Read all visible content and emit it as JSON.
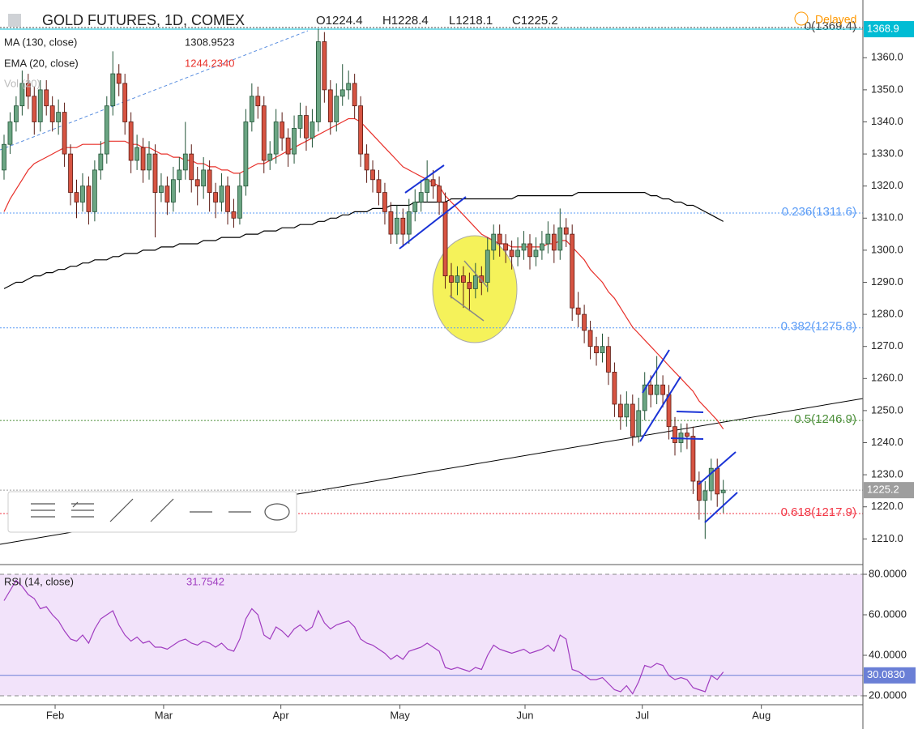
{
  "header": {
    "title": "GOLD FUTURES, 1D, COMEX",
    "ohlc": [
      "O1224.4",
      "H1228.4",
      "L1218.1",
      "C1225.2"
    ],
    "status": "Delayed"
  },
  "chart_data": [
    {
      "type": "candlestick",
      "up_color": "#6ba583",
      "down_color": "#d75442",
      "candles": [
        [
          1325,
          1336,
          1322,
          1333
        ],
        [
          1333,
          1343,
          1330,
          1340
        ],
        [
          1340,
          1348,
          1337,
          1345
        ],
        [
          1345,
          1356,
          1342,
          1352
        ],
        [
          1352,
          1355,
          1344,
          1348
        ],
        [
          1348,
          1351,
          1336,
          1340
        ],
        [
          1340,
          1353,
          1337,
          1350
        ],
        [
          1350,
          1353,
          1342,
          1345
        ],
        [
          1345,
          1348,
          1337,
          1340
        ],
        [
          1340,
          1347,
          1336,
          1343
        ],
        [
          1343,
          1346,
          1326,
          1330
        ],
        [
          1330,
          1333,
          1314,
          1318
        ],
        [
          1318,
          1322,
          1310,
          1315
        ],
        [
          1315,
          1324,
          1312,
          1320
        ],
        [
          1320,
          1323,
          1308,
          1312
        ],
        [
          1312,
          1328,
          1309,
          1325
        ],
        [
          1325,
          1334,
          1322,
          1330
        ],
        [
          1330,
          1348,
          1327,
          1345
        ],
        [
          1345,
          1362,
          1342,
          1355
        ],
        [
          1355,
          1358,
          1348,
          1352
        ],
        [
          1352,
          1355,
          1336,
          1340
        ],
        [
          1340,
          1343,
          1324,
          1328
        ],
        [
          1328,
          1336,
          1325,
          1332
        ],
        [
          1332,
          1335,
          1321,
          1325
        ],
        [
          1325,
          1334,
          1322,
          1330
        ],
        [
          1330,
          1333,
          1304,
          1318
        ],
        [
          1318,
          1324,
          1315,
          1320
        ],
        [
          1320,
          1323,
          1311,
          1315
        ],
        [
          1315,
          1326,
          1312,
          1322
        ],
        [
          1322,
          1329,
          1318,
          1325
        ],
        [
          1325,
          1340,
          1322,
          1330
        ],
        [
          1330,
          1333,
          1318,
          1322
        ],
        [
          1322,
          1326,
          1314,
          1320
        ],
        [
          1320,
          1329,
          1316,
          1325
        ],
        [
          1325,
          1328,
          1312,
          1318
        ],
        [
          1318,
          1321,
          1310,
          1315
        ],
        [
          1315,
          1324,
          1312,
          1320
        ],
        [
          1320,
          1323,
          1308,
          1312
        ],
        [
          1312,
          1316,
          1307,
          1310
        ],
        [
          1310,
          1324,
          1308,
          1320
        ],
        [
          1320,
          1344,
          1317,
          1340
        ],
        [
          1340,
          1352,
          1337,
          1348
        ],
        [
          1348,
          1351,
          1341,
          1345
        ],
        [
          1345,
          1348,
          1324,
          1328
        ],
        [
          1328,
          1334,
          1325,
          1330
        ],
        [
          1330,
          1344,
          1327,
          1340
        ],
        [
          1340,
          1343,
          1331,
          1335
        ],
        [
          1335,
          1338,
          1326,
          1330
        ],
        [
          1330,
          1342,
          1327,
          1338
        ],
        [
          1338,
          1346,
          1335,
          1342
        ],
        [
          1342,
          1345,
          1331,
          1335
        ],
        [
          1335,
          1344,
          1332,
          1340
        ],
        [
          1340,
          1369,
          1337,
          1365
        ],
        [
          1365,
          1368,
          1346,
          1350
        ],
        [
          1350,
          1353,
          1336,
          1340
        ],
        [
          1340,
          1352,
          1337,
          1348
        ],
        [
          1348,
          1358,
          1345,
          1350
        ],
        [
          1350,
          1356,
          1347,
          1352
        ],
        [
          1352,
          1355,
          1341,
          1345
        ],
        [
          1345,
          1348,
          1326,
          1330
        ],
        [
          1330,
          1333,
          1321,
          1325
        ],
        [
          1325,
          1328,
          1318,
          1322
        ],
        [
          1322,
          1325,
          1314,
          1318
        ],
        [
          1318,
          1321,
          1308,
          1312
        ],
        [
          1312,
          1315,
          1302,
          1305
        ],
        [
          1305,
          1314,
          1302,
          1310
        ],
        [
          1310,
          1313,
          1301,
          1305
        ],
        [
          1305,
          1316,
          1302,
          1312
        ],
        [
          1312,
          1319,
          1309,
          1315
        ],
        [
          1315,
          1322,
          1312,
          1318
        ],
        [
          1318,
          1328,
          1315,
          1322
        ],
        [
          1322,
          1325,
          1316,
          1320
        ],
        [
          1320,
          1323,
          1311,
          1315
        ],
        [
          1315,
          1318,
          1288,
          1292
        ],
        [
          1292,
          1296,
          1285,
          1290
        ],
        [
          1290,
          1295,
          1286,
          1292
        ],
        [
          1292,
          1295,
          1282,
          1290
        ],
        [
          1290,
          1293,
          1281,
          1288
        ],
        [
          1288,
          1296,
          1285,
          1292
        ],
        [
          1292,
          1295,
          1286,
          1290
        ],
        [
          1290,
          1304,
          1287,
          1300
        ],
        [
          1300,
          1308,
          1297,
          1305
        ],
        [
          1305,
          1308,
          1298,
          1302
        ],
        [
          1302,
          1305,
          1296,
          1300
        ],
        [
          1300,
          1303,
          1294,
          1298
        ],
        [
          1298,
          1304,
          1295,
          1300
        ],
        [
          1300,
          1306,
          1297,
          1302
        ],
        [
          1302,
          1305,
          1294,
          1298
        ],
        [
          1298,
          1304,
          1295,
          1300
        ],
        [
          1300,
          1306,
          1297,
          1302
        ],
        [
          1302,
          1309,
          1299,
          1305
        ],
        [
          1305,
          1308,
          1296,
          1300
        ],
        [
          1300,
          1313,
          1297,
          1307
        ],
        [
          1307,
          1310,
          1301,
          1305
        ],
        [
          1305,
          1308,
          1278,
          1282
        ],
        [
          1282,
          1287,
          1276,
          1280
        ],
        [
          1280,
          1283,
          1271,
          1275
        ],
        [
          1275,
          1278,
          1266,
          1270
        ],
        [
          1270,
          1273,
          1264,
          1268
        ],
        [
          1268,
          1274,
          1265,
          1270
        ],
        [
          1270,
          1273,
          1258,
          1262
        ],
        [
          1262,
          1265,
          1248,
          1252
        ],
        [
          1252,
          1255,
          1244,
          1248
        ],
        [
          1248,
          1256,
          1245,
          1252
        ],
        [
          1252,
          1255,
          1239,
          1242
        ],
        [
          1242,
          1254,
          1240,
          1250
        ],
        [
          1250,
          1262,
          1247,
          1258
        ],
        [
          1258,
          1261,
          1251,
          1255
        ],
        [
          1255,
          1267,
          1252,
          1258
        ],
        [
          1258,
          1261,
          1251,
          1255
        ],
        [
          1255,
          1258,
          1241,
          1245
        ],
        [
          1245,
          1248,
          1236,
          1240
        ],
        [
          1240,
          1246,
          1237,
          1243
        ],
        [
          1243,
          1246,
          1238,
          1242
        ],
        [
          1242,
          1245,
          1224,
          1228
        ],
        [
          1228,
          1231,
          1216,
          1222
        ],
        [
          1222,
          1228,
          1210,
          1225
        ],
        [
          1225,
          1235,
          1222,
          1232
        ],
        [
          1232,
          1235,
          1220,
          1224
        ],
        [
          1224.4,
          1228.4,
          1218.1,
          1225.2
        ]
      ],
      "series": [
        {
          "name": "MA (130, close)",
          "color": "#000000",
          "values": [
            1288,
            1289,
            1290,
            1290,
            1291,
            1292,
            1292,
            1293,
            1293,
            1294,
            1294,
            1295,
            1295,
            1296,
            1296,
            1297,
            1297,
            1297,
            1298,
            1298,
            1299,
            1299,
            1299,
            1300,
            1300,
            1300,
            1301,
            1301,
            1301,
            1302,
            1302,
            1302,
            1302,
            1303,
            1303,
            1303,
            1304,
            1304,
            1304,
            1304,
            1305,
            1305,
            1305,
            1306,
            1306,
            1306,
            1307,
            1307,
            1307,
            1308,
            1308,
            1308,
            1309,
            1309,
            1310,
            1310,
            1311,
            1311,
            1312,
            1312,
            1312,
            1313,
            1313,
            1313,
            1314,
            1314,
            1314,
            1314,
            1315,
            1315,
            1315,
            1315,
            1315,
            1315,
            1316,
            1316,
            1316,
            1316,
            1316,
            1316,
            1316,
            1316,
            1316,
            1316,
            1316,
            1317,
            1317,
            1317,
            1317,
            1317,
            1317,
            1317,
            1317,
            1317,
            1317,
            1318,
            1318,
            1318,
            1318,
            1318,
            1318,
            1318,
            1318,
            1318,
            1318,
            1318,
            1318,
            1317,
            1317,
            1316,
            1316,
            1315,
            1315,
            1314,
            1314,
            1313,
            1312,
            1311,
            1310,
            1308.9523
          ]
        },
        {
          "name": "EMA (20, close)",
          "color": "#e8302a",
          "last_label": "1244.2340",
          "values": [
            1312,
            1316,
            1319,
            1322,
            1325,
            1327,
            1328,
            1329,
            1330,
            1331,
            1332,
            1332,
            1332,
            1333,
            1333,
            1333,
            1333,
            1334,
            1334,
            1334,
            1334,
            1333,
            1333,
            1332,
            1332,
            1331,
            1330,
            1330,
            1329,
            1329,
            1328,
            1328,
            1327,
            1327,
            1326,
            1326,
            1325,
            1325,
            1324,
            1324,
            1325,
            1326,
            1327,
            1327,
            1328,
            1329,
            1330,
            1331,
            1332,
            1333,
            1334,
            1335,
            1336,
            1337,
            1338,
            1339,
            1340,
            1341,
            1341,
            1340,
            1338,
            1336,
            1334,
            1332,
            1330,
            1328,
            1326,
            1325,
            1324,
            1323,
            1322,
            1321,
            1320,
            1317,
            1315,
            1313,
            1311,
            1309,
            1307,
            1305,
            1304,
            1303,
            1302,
            1302,
            1301,
            1301,
            1301,
            1301,
            1301,
            1301,
            1302,
            1302,
            1303,
            1303,
            1301,
            1299,
            1297,
            1294,
            1292,
            1290,
            1287,
            1285,
            1282,
            1279,
            1276,
            1274,
            1272,
            1270,
            1268,
            1266,
            1264,
            1262,
            1260,
            1258,
            1256,
            1253,
            1251,
            1249,
            1247,
            1244.234
          ]
        }
      ],
      "volume_label": "Vol (20)",
      "ylim": [
        1202,
        1378
      ],
      "yticks": [
        {
          "value": 1210,
          "label": "1210.0"
        },
        {
          "value": 1220,
          "label": "1220.0"
        },
        {
          "value": 1230,
          "label": "1230.0"
        },
        {
          "value": 1240,
          "label": "1240.0"
        },
        {
          "value": 1250,
          "label": "1250.0"
        },
        {
          "value": 1260,
          "label": "1260.0"
        },
        {
          "value": 1270,
          "label": "1270.0"
        },
        {
          "value": 1280,
          "label": "1280.0"
        },
        {
          "value": 1290,
          "label": "1290.0"
        },
        {
          "value": 1300,
          "label": "1300.0"
        },
        {
          "value": 1310,
          "label": "1310.0"
        },
        {
          "value": 1320,
          "label": "1320.0"
        },
        {
          "value": 1330,
          "label": "1330.0"
        },
        {
          "value": 1340,
          "label": "1340.0"
        },
        {
          "value": 1350,
          "label": "1350.0"
        },
        {
          "value": 1360,
          "label": "1360.0"
        }
      ],
      "xlim": [
        -0.67,
        142.1
      ],
      "xticks": [
        {
          "value": 8.45,
          "label": "Feb"
        },
        {
          "value": 26.4,
          "label": "Mar"
        },
        {
          "value": 45.8,
          "label": "Apr"
        },
        {
          "value": 65.5,
          "label": "May"
        },
        {
          "value": 86.2,
          "label": "Jun"
        },
        {
          "value": 105.6,
          "label": "Jul"
        },
        {
          "value": 125.3,
          "label": "Aug"
        }
      ],
      "levels": [
        {
          "value": 1369.4,
          "label": "0(1369.4)",
          "color": "#444444"
        },
        {
          "value": 1311.6,
          "label": "0.236(1311.6)",
          "color": "#5b9cf6"
        },
        {
          "value": 1275.8,
          "label": "0.382(1275.8)",
          "color": "#5b9cf6"
        },
        {
          "value": 1246.9,
          "label": "0.5(1246.9)",
          "color": "#4c8f3a"
        },
        {
          "value": 1217.9,
          "label": "0.618(1217.9)",
          "color": "#f23645"
        }
      ],
      "price_lines": [
        {
          "value": 1368.9,
          "color": "#00bcd4"
        },
        {
          "value": 1225.2,
          "color": "#9e9e9e"
        }
      ]
    },
    {
      "type": "line",
      "name": "RSI (14, close)",
      "color": "#a03cc0",
      "values": [
        67,
        72,
        77,
        74,
        70,
        68,
        63,
        64,
        60,
        57,
        52,
        48,
        47,
        50,
        46,
        53,
        58,
        60,
        62,
        55,
        50,
        47,
        49,
        46,
        47,
        44,
        44,
        43,
        45,
        47,
        48,
        46,
        45,
        47,
        46,
        44,
        46,
        43,
        42,
        48,
        58,
        63,
        60,
        50,
        48,
        54,
        52,
        49,
        53,
        55,
        52,
        54,
        62,
        56,
        53,
        55,
        56,
        57,
        54,
        48,
        46,
        45,
        43,
        41,
        38,
        40,
        38,
        42,
        43,
        44,
        46,
        44,
        42,
        34,
        33,
        34,
        33,
        32,
        34,
        33,
        40,
        45,
        43,
        42,
        41,
        42,
        43,
        41,
        42,
        43,
        45,
        42,
        50,
        48,
        33,
        32,
        30,
        28,
        28,
        29,
        26,
        23,
        22,
        25,
        21,
        27,
        35,
        34,
        36,
        35,
        30,
        28,
        29,
        28,
        24,
        23,
        22,
        30,
        28,
        31.7542
      ],
      "ylim": [
        15.6,
        83.6
      ],
      "yticks": [
        {
          "value": 20,
          "label": "20.0000"
        },
        {
          "value": 40,
          "label": "40.0000"
        },
        {
          "value": 60,
          "label": "60.0000"
        },
        {
          "value": 80,
          "label": "80.0000"
        }
      ],
      "band": [
        20,
        80
      ],
      "level": {
        "value": 30.083,
        "label": "30.0830"
      }
    }
  ]
}
